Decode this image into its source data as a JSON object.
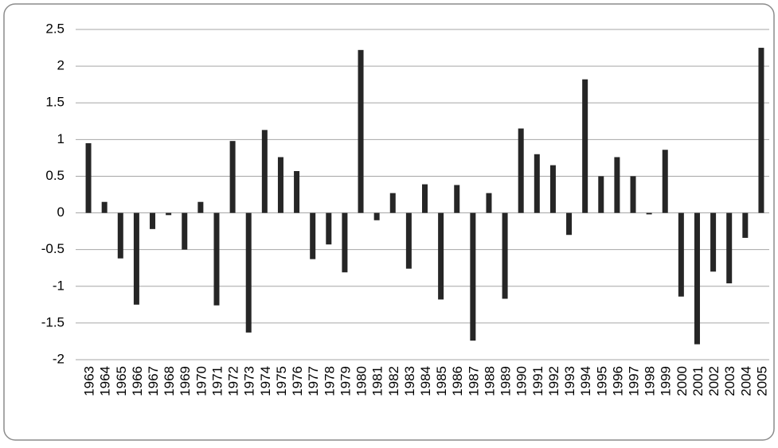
{
  "chart_data": {
    "type": "bar",
    "categories": [
      "1963",
      "1964",
      "1965",
      "1966",
      "1967",
      "1968",
      "1969",
      "1970",
      "1971",
      "1972",
      "1973",
      "1974",
      "1975",
      "1976",
      "1977",
      "1978",
      "1979",
      "1980",
      "1981",
      "1982",
      "1983",
      "1984",
      "1985",
      "1986",
      "1987",
      "1988",
      "1989",
      "1990",
      "1991",
      "1992",
      "1993",
      "1994",
      "1995",
      "1996",
      "1997",
      "1998",
      "1999",
      "2000",
      "2001",
      "2002",
      "2003",
      "2004",
      "2005"
    ],
    "values": [
      0.95,
      0.15,
      -0.62,
      -1.25,
      -0.22,
      -0.03,
      -0.5,
      0.15,
      -1.26,
      0.98,
      -1.63,
      1.13,
      0.76,
      0.57,
      -0.63,
      -0.43,
      -0.81,
      2.22,
      -0.1,
      0.27,
      -0.76,
      0.39,
      -1.18,
      0.38,
      -1.74,
      0.27,
      -1.17,
      1.15,
      0.8,
      0.65,
      -0.3,
      1.82,
      0.5,
      0.76,
      0.5,
      -0.02,
      0.86,
      -1.14,
      -1.79,
      -0.8,
      -0.96,
      -0.34,
      2.25
    ],
    "color": "#262626",
    "ylim": [
      -2,
      2.5
    ],
    "yticks": [
      -2,
      -1.5,
      -1,
      -0.5,
      0,
      0.5,
      1,
      1.5,
      2,
      2.5
    ],
    "grid": true
  }
}
